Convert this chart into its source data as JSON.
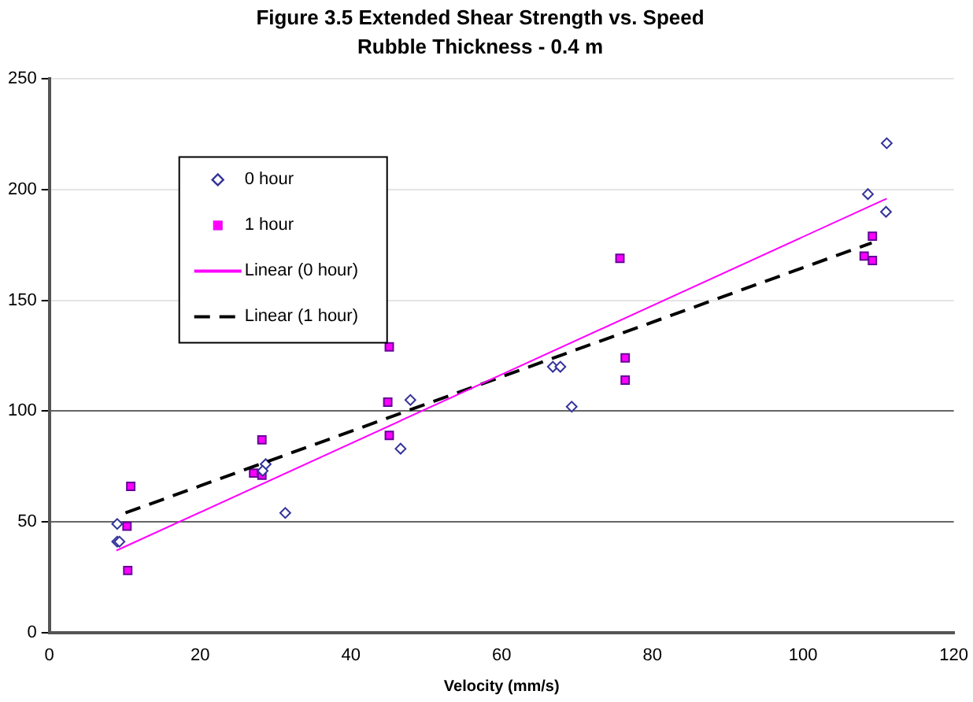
{
  "chart_data": {
    "type": "scatter",
    "title": "Figure 3.5 Extended Shear Strength vs. Speed",
    "subtitle": "Rubble Thickness - 0.4 m",
    "xlabel": "Velocity (mm/s)",
    "xlim": [
      0,
      120
    ],
    "xticks": [
      0,
      20,
      40,
      60,
      80,
      100,
      120
    ],
    "ylim": [
      0,
      250
    ],
    "yticks": [
      0,
      50,
      100,
      150,
      200,
      250
    ],
    "grid": "y",
    "legend": "top left",
    "series": [
      {
        "name": "0 hour",
        "color": "#ffffff",
        "marker": "diamond",
        "x": [
          9.0,
          9.0,
          9.3,
          28.7,
          28.3,
          31.3,
          47.9,
          46.6,
          66.8,
          67.8,
          69.3,
          108.6,
          111.1,
          111.0
        ],
        "values": [
          49,
          41,
          41,
          76,
          73,
          54,
          105,
          83,
          120,
          120,
          102,
          198,
          221,
          190
        ]
      },
      {
        "name": "1 hour",
        "color": "#ff00ff",
        "marker": "square",
        "x": [
          10.8,
          10.3,
          10.4,
          27.1,
          28.2,
          28.2,
          45.1,
          44.9,
          45.1,
          75.7,
          76.4,
          76.4,
          108.1,
          109.2,
          109.2
        ],
        "values": [
          66,
          48,
          28,
          72,
          71,
          87,
          129,
          104,
          89,
          169,
          124,
          114,
          170,
          168,
          179
        ]
      },
      {
        "name": "Linear (0 hour)",
        "type": "line",
        "color": "#ff00ff",
        "marker": "none",
        "line_style": "solid",
        "x": [
          8.9,
          111.1
        ],
        "values": [
          37,
          196
        ]
      },
      {
        "name": "Linear (1 hour)",
        "type": "line",
        "color": "#000000",
        "marker": "none",
        "line_style": "dashed",
        "x": [
          10.1,
          109.1
        ],
        "values": [
          54,
          176
        ]
      }
    ]
  }
}
